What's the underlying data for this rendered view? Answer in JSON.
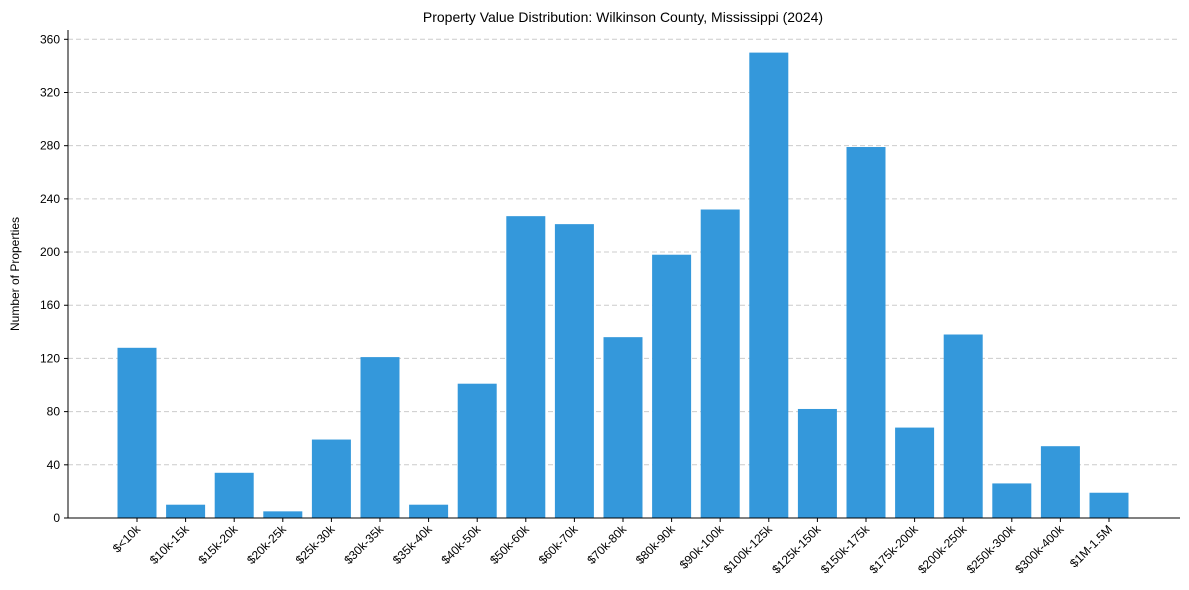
{
  "chart_data": {
    "type": "bar",
    "title": "Property Value Distribution: Wilkinson County, Mississippi (2024)",
    "xlabel": "",
    "ylabel": "Number of Properties",
    "categories": [
      "$<10k",
      "$10k-15k",
      "$15k-20k",
      "$20k-25k",
      "$25k-30k",
      "$30k-35k",
      "$35k-40k",
      "$40k-50k",
      "$50k-60k",
      "$60k-70k",
      "$70k-80k",
      "$80k-90k",
      "$90k-100k",
      "$100k-125k",
      "$125k-150k",
      "$150k-175k",
      "$175k-200k",
      "$200k-250k",
      "$250k-300k",
      "$300k-400k",
      "$1M-1.5M"
    ],
    "values": [
      128,
      10,
      34,
      5,
      59,
      121,
      10,
      101,
      227,
      221,
      136,
      198,
      232,
      350,
      82,
      279,
      68,
      138,
      26,
      54,
      19
    ],
    "ylim": [
      0,
      367
    ],
    "yticks": [
      0,
      40,
      80,
      120,
      160,
      200,
      240,
      280,
      320,
      360
    ],
    "grid": true,
    "bar_color": "#3498db"
  }
}
